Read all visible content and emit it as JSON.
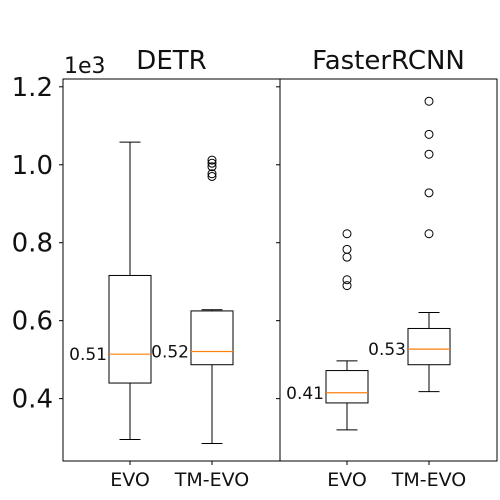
{
  "chart_data": {
    "type": "boxplot",
    "y_multiplier_label": "1e3",
    "ylim": [
      0.24,
      1.22
    ],
    "yticks": [
      "0.4",
      "0.6",
      "0.8",
      "1.0",
      "1.2"
    ],
    "ytick_values": [
      0.4,
      0.6,
      0.8,
      1.0,
      1.2
    ],
    "median_color": "#ff7f0e",
    "box_color": "#000000",
    "panels": [
      {
        "title": "DETR",
        "categories": [
          "EVO",
          "TM-EVO"
        ],
        "boxes": [
          {
            "category": "EVO",
            "whisker_low": 0.295,
            "q1": 0.44,
            "median": 0.514,
            "q3": 0.716,
            "whisker_high": 1.058,
            "outliers": [],
            "median_label": "0.51"
          },
          {
            "category": "TM-EVO",
            "whisker_low": 0.285,
            "q1": 0.487,
            "median": 0.521,
            "q3": 0.625,
            "whisker_high": 0.628,
            "outliers": [
              1.012,
              1.004,
              0.995,
              0.977,
              0.97
            ],
            "median_label": "0.52"
          }
        ]
      },
      {
        "title": "FasterRCNN",
        "categories": [
          "EVO",
          "TM-EVO"
        ],
        "boxes": [
          {
            "category": "EVO",
            "whisker_low": 0.32,
            "q1": 0.389,
            "median": 0.415,
            "q3": 0.472,
            "whisker_high": 0.497,
            "outliers": [
              0.823,
              0.783,
              0.763,
              0.705,
              0.69
            ],
            "median_label": "0.41"
          },
          {
            "category": "TM-EVO",
            "whisker_low": 0.418,
            "q1": 0.487,
            "median": 0.527,
            "q3": 0.58,
            "whisker_high": 0.621,
            "outliers": [
              1.163,
              1.078,
              1.027,
              0.928,
              0.823
            ],
            "median_label": "0.53"
          }
        ]
      }
    ]
  }
}
